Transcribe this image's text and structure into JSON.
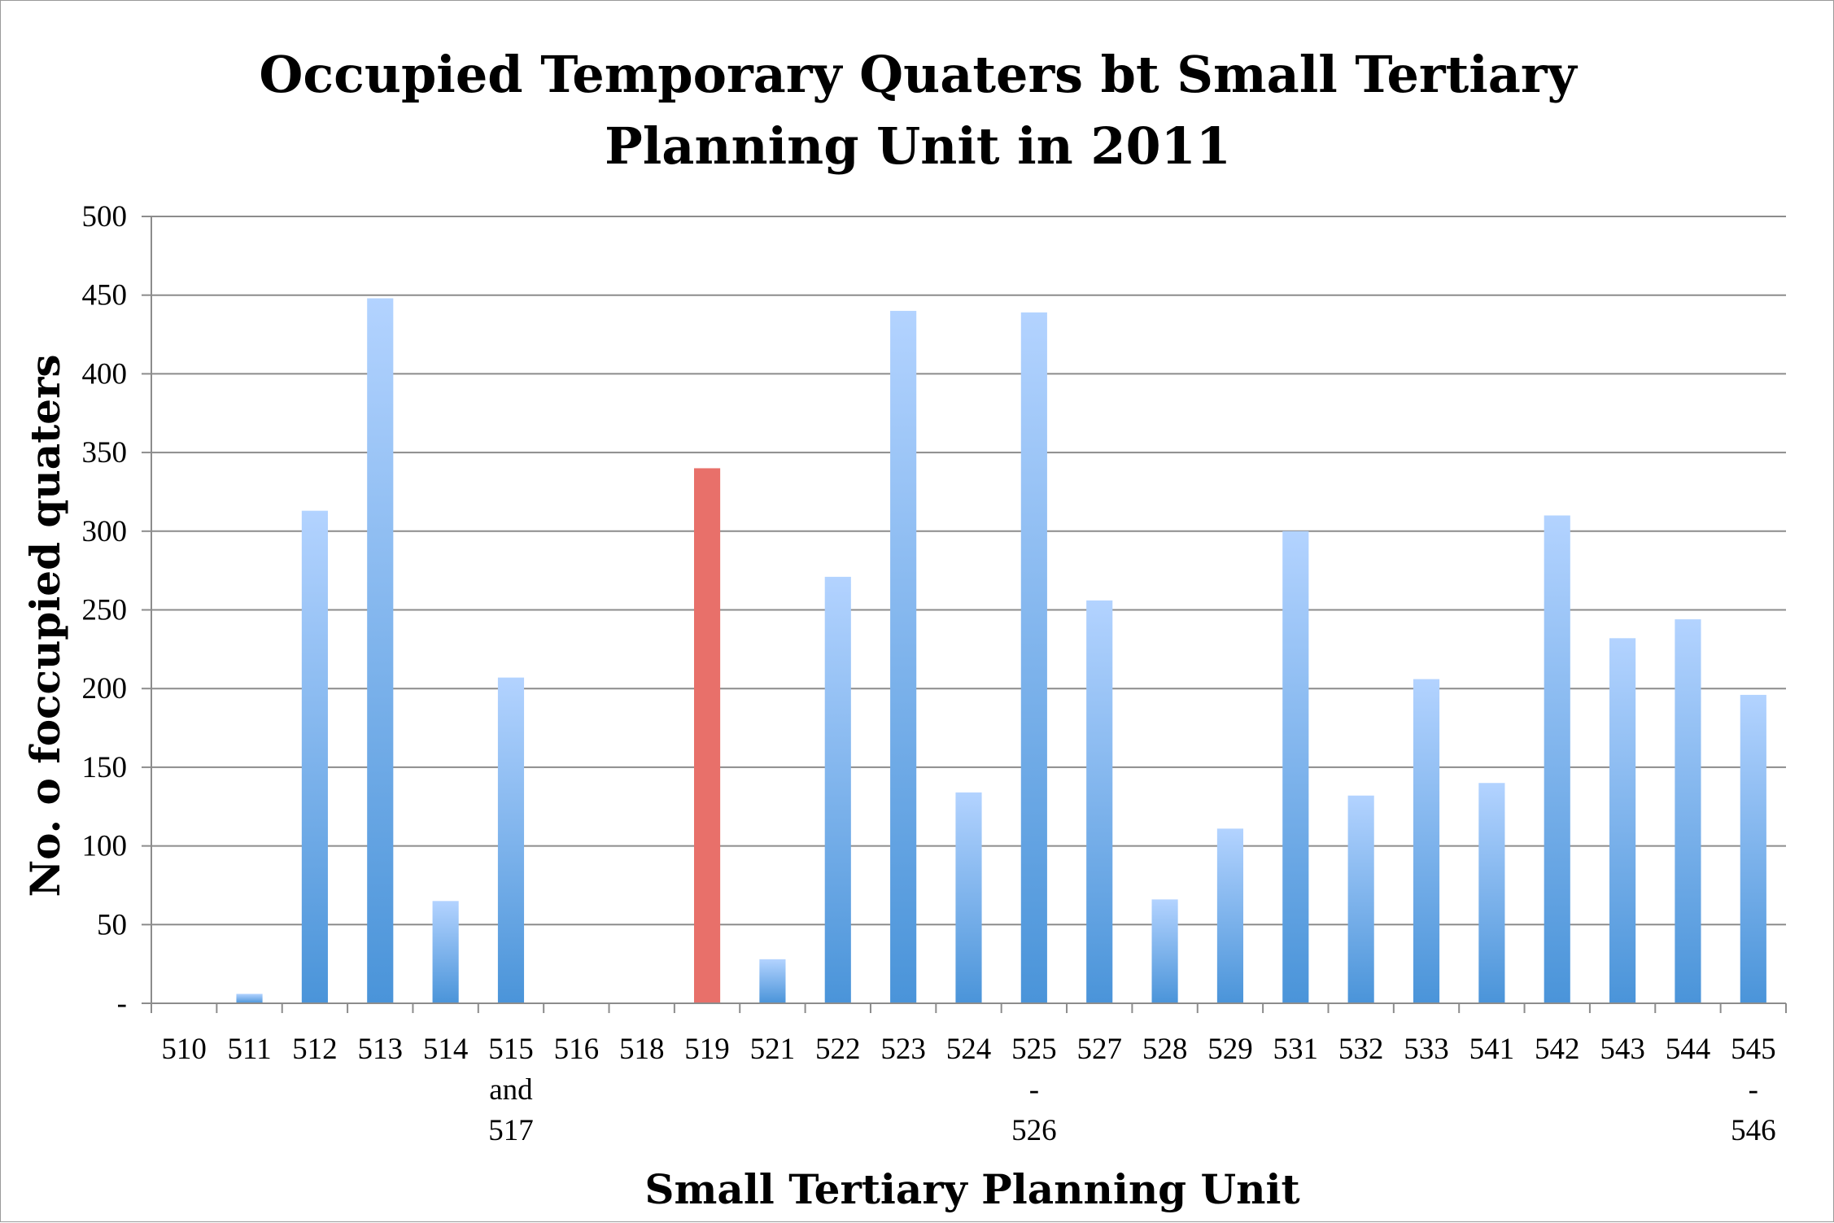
{
  "chart_data": {
    "type": "bar",
    "title_lines": [
      "Occupied Temporary Quaters bt Small Tertiary",
      "Planning Unit in 2011"
    ],
    "xlabel": "Small Tertiary Planning Unit",
    "ylabel": "No. o foccupied quaters",
    "ylim": [
      0,
      500
    ],
    "y_ticks": [
      {
        "value": 0,
        "label": "-"
      },
      {
        "value": 50,
        "label": "50"
      },
      {
        "value": 100,
        "label": "100"
      },
      {
        "value": 150,
        "label": "150"
      },
      {
        "value": 200,
        "label": "200"
      },
      {
        "value": 250,
        "label": "250"
      },
      {
        "value": 300,
        "label": "300"
      },
      {
        "value": 350,
        "label": "350"
      },
      {
        "value": 400,
        "label": "400"
      },
      {
        "value": 450,
        "label": "450"
      },
      {
        "value": 500,
        "label": "500"
      }
    ],
    "grid": true,
    "legend": "none",
    "categories": [
      [
        "510"
      ],
      [
        "511"
      ],
      [
        "512"
      ],
      [
        "513"
      ],
      [
        "514"
      ],
      [
        "515",
        "and",
        "517"
      ],
      [
        "516"
      ],
      [
        "518"
      ],
      [
        "519"
      ],
      [
        "521"
      ],
      [
        "522"
      ],
      [
        "523"
      ],
      [
        "524"
      ],
      [
        "525",
        "-",
        "526"
      ],
      [
        "527"
      ],
      [
        "528"
      ],
      [
        "529"
      ],
      [
        "531"
      ],
      [
        "532"
      ],
      [
        "533"
      ],
      [
        "541"
      ],
      [
        "542"
      ],
      [
        "543"
      ],
      [
        "544"
      ],
      [
        "545",
        "-",
        "546"
      ]
    ],
    "values": [
      0,
      6,
      313,
      448,
      65,
      207,
      0,
      0,
      340,
      28,
      271,
      440,
      134,
      439,
      256,
      66,
      111,
      300,
      132,
      206,
      140,
      310,
      232,
      244,
      196
    ],
    "highlight_index": 8,
    "colors": {
      "bar_top": "#b3d3ff",
      "bar_bottom": "#4a94d9",
      "highlight": "#e8706a",
      "grid": "#8c8c8c"
    }
  }
}
